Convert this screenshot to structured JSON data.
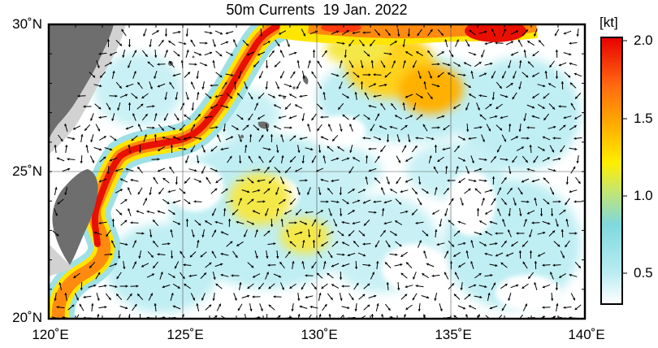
{
  "map": {
    "title": "50m Currents  19 Jan. 2022",
    "lon_min": 120,
    "lon_max": 140,
    "lat_min": 20,
    "lat_max": 30,
    "lat_labels": [
      "30˚N",
      "25˚N",
      "20˚N"
    ],
    "lon_labels": [
      "120˚E",
      "125˚E",
      "130˚E",
      "135˚E",
      "140˚E"
    ],
    "colorbar": {
      "unit": "[kt]",
      "tick_labels": [
        "2.0",
        "1.5",
        "1.0",
        "0.5"
      ],
      "min": 0.3,
      "max": 2.1,
      "colors": [
        "#ffffff",
        "#b8ecf2",
        "#7fd8dc",
        "#c8e66a",
        "#ffee00",
        "#ffb200",
        "#ff6a10",
        "#e80000"
      ]
    },
    "land_color": "#6e6e6e",
    "shelf_color": "#d2d2d2",
    "arrow_color": "#000000"
  }
}
